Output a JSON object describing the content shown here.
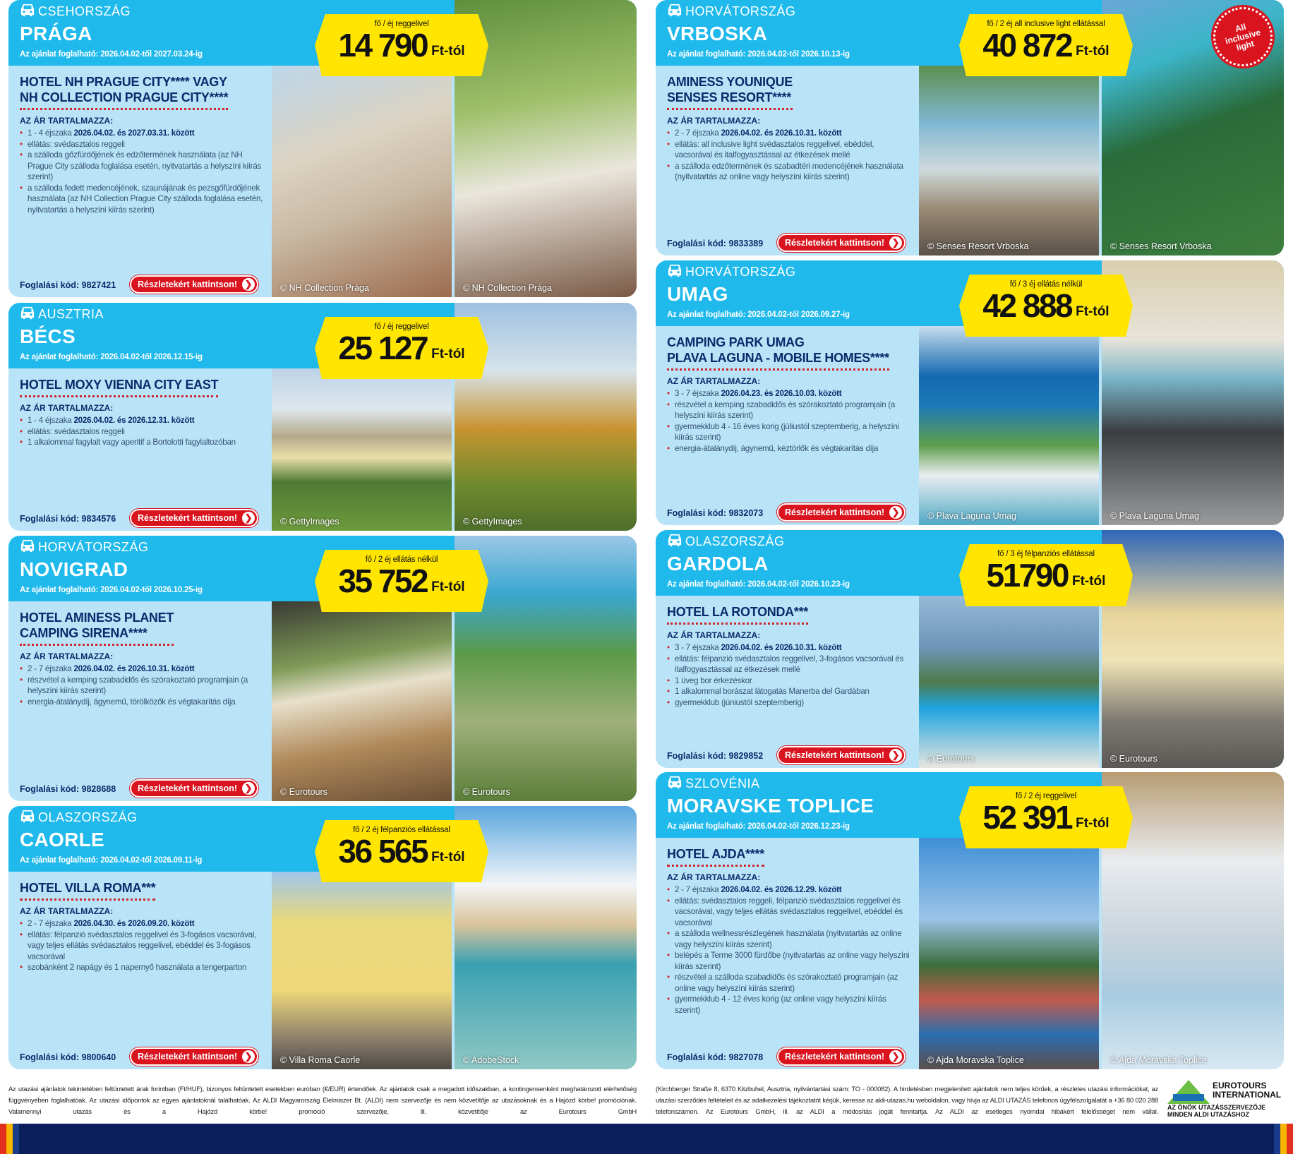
{
  "common": {
    "includes_label": "AZ ÁR TARTALMAZZA:",
    "code_label": "Foglalási kód:",
    "button_label": "Részletekért kattintson!",
    "price_suffix": "Ft-tól",
    "car_icon": "car-icon",
    "arrow_icon": "chevron-right-circle-icon"
  },
  "colors": {
    "header": "#1fb9ec",
    "panel": "#b9e4f7",
    "title": "#0b2a6b",
    "accent_red": "#d9141e",
    "price_yellow": "#ffe500",
    "bottom_bar": "#0b1f5c"
  },
  "cards": [
    {
      "country": "CSEHORSZÁG",
      "city": "PRÁGA",
      "dates": "Az ajánlat foglalható: 2026.04.02-től 2027.03.24-ig",
      "per": "fő / éj reggelivel",
      "price": "14 790",
      "hotel": [
        "HOTEL NH PRAGUE CITY**** VAGY",
        "NH COLLECTION PRAGUE CITY****"
      ],
      "bullets": [
        {
          "text": "1 - 4 éjszaka ",
          "bold": "2026.04.02. és 2027.03.31. között"
        },
        {
          "text": "ellátás: svédasztalos reggeli"
        },
        {
          "text": "a szálloda gőzfürdőjének és edzőtermének használata (az NH Prague City szálloda foglalása esetén, nyitvatartás a helyszíni kiírás szerint)"
        },
        {
          "text": "a szálloda fedett medencéjének, szaunájának és pezsgőfürdőjének használata (az NH Collection Prague City szálloda foglalása esetén, nyitvatartás a helyszíni kiírás szerint)"
        }
      ],
      "code": "9827421",
      "captions": [
        "© NH Collection Prága",
        "© NH Collection Prága"
      ]
    },
    {
      "country": "AUSZTRIA",
      "city": "BÉCS",
      "dates": "Az ajánlat foglalható: 2026.04.02-től 2026.12.15-ig",
      "per": "fő / éj reggelivel",
      "price": "25 127",
      "hotel": [
        "HOTEL MOXY VIENNA CITY EAST"
      ],
      "bullets": [
        {
          "text": "1 - 4 éjszaka ",
          "bold": "2026.04.02. és 2026.12.31. között"
        },
        {
          "text": "ellátás: svédasztalos reggeli"
        },
        {
          "text": "1 alkalommal fagylalt vagy aperitif a Bortolotti fagylaltozóban"
        }
      ],
      "code": "9834576",
      "captions": [
        "© GettyImages",
        "© GettyImages"
      ]
    },
    {
      "country": "HORVÁTORSZÁG",
      "city": "NOVIGRAD",
      "dates": "Az ajánlat foglalható: 2026.04.02-től 2026.10.25-ig",
      "per": "fő / 2 éj ellátás nélkül",
      "price": "35 752",
      "hotel": [
        "HOTEL AMINESS PLANET",
        "CAMPING SIRENA****"
      ],
      "bullets": [
        {
          "text": "2 - 7 éjszaka ",
          "bold": "2026.04.02. és 2026.10.31. között"
        },
        {
          "text": "részvétel a kemping szabadidős és szórakoztató programjain (a helyszíni kiírás szerint)"
        },
        {
          "text": "energia-átalánydíj, ágynemű, törölközők és végtakarítás díja"
        }
      ],
      "code": "9828688",
      "captions": [
        "© Eurotours",
        "© Eurotours"
      ]
    },
    {
      "country": "OLASZORSZÁG",
      "city": "CAORLE",
      "dates": "Az ajánlat foglalható: 2026.04.02-től 2026.09.11-ig",
      "per": "fő / 2 éj félpanziós ellátással",
      "price": "36 565",
      "hotel": [
        "HOTEL VILLA ROMA***"
      ],
      "bullets": [
        {
          "text": "2 - 7 éjszaka ",
          "bold": "2026.04.30. és 2026.09.20. között"
        },
        {
          "text": "ellátás: félpanzió svédasztalos reggelivel és 3-fogásos vacsorával, vagy teljes ellátás svédasztalos reggelivel, ebéddel és 3-fogásos vacsorával"
        },
        {
          "text": "szobánként 2 napágy és 1 napernyő használata a tengerparton"
        }
      ],
      "code": "9800640",
      "captions": [
        "© Villa Roma Caorle",
        "© AdobeStock"
      ]
    },
    {
      "country": "HORVÁTORSZÁG",
      "city": "VRBOSKA",
      "dates": "Az ajánlat foglalható: 2026.04.02-től 2026.10.13-ig",
      "per": "fő / 2 éj all inclusive light ellátással",
      "price": "40 872",
      "hotel": [
        "AMINESS YOUNIQUE",
        "SENSES RESORT****"
      ],
      "bullets": [
        {
          "text": "2 - 7 éjszaka ",
          "bold": "2026.04.02. és 2026.10.31. között"
        },
        {
          "text": "ellátás: all inclusive light svédasztalos reggelivel, ebéddel, vacsorával és italfogyasztással az étkezések mellé"
        },
        {
          "text": "a szálloda edzőtermének és szabadtéri medencéjének használata (nyitvatartás az online vagy helyszíni kiírás szerint)"
        }
      ],
      "code": "9833389",
      "captions": [
        "© Senses Resort Vrboska",
        "© Senses Resort Vrboska"
      ],
      "stamp": "All inclusive light"
    },
    {
      "country": "HORVÁTORSZÁG",
      "city": "UMAG",
      "dates": "Az ajánlat foglalható: 2026.04.02-től 2026.09.27-ig",
      "per": "fő / 3 éj ellátás nélkül",
      "price": "42 888",
      "hotel": [
        "CAMPING PARK UMAG",
        "PLAVA LAGUNA - MOBILE HOMES****"
      ],
      "bullets": [
        {
          "text": "3 - 7 éjszaka ",
          "bold": "2026.04.23. és 2026.10.03. között"
        },
        {
          "text": "részvétel a kemping szabadidős és szórakoztató programjain (a helyszíni kiírás szerint)"
        },
        {
          "text": "gyermekklub 4 - 16 éves korig (júliustól szeptemberig, a helyszíni kiírás szerint)"
        },
        {
          "text": "energia-átalánydíj, ágynemű, kéztörlők és végtakarítás díja"
        }
      ],
      "code": "9832073",
      "captions": [
        "© Plava Laguna Umag",
        "© Plava Laguna Umag"
      ]
    },
    {
      "country": "OLASZORSZÁG",
      "city": "GARDOLA",
      "dates": "Az ajánlat foglalható: 2026.04.02-től 2026.10.23-ig",
      "per": "fő / 3 éj félpanziós ellátással",
      "price": "51790",
      "hotel": [
        "HOTEL LA ROTONDA***"
      ],
      "bullets": [
        {
          "text": "3 - 7 éjszaka ",
          "bold": "2026.04.02. és 2026.10.31. között"
        },
        {
          "text": "ellátás: félpanzió svédasztalos reggelivel, 3-fogásos vacsorával és italfogyasztással az étkezések mellé"
        },
        {
          "text": "1 üveg bor érkezéskor"
        },
        {
          "text": "1 alkalommal borászat látogatás Manerba del Gardában"
        },
        {
          "text": "gyermekklub (júniustól szeptemberig)"
        }
      ],
      "code": "9829852",
      "captions": [
        "© Eurotours",
        "© Eurotours"
      ]
    },
    {
      "country": "SZLOVÉNIA",
      "city": "MORAVSKE TOPLICE",
      "dates": "Az ajánlat foglalható: 2026.04.02-től 2026.12.23-ig",
      "per": "fő / 2 éj reggelivel",
      "price": "52 391",
      "hotel": [
        "HOTEL AJDA****"
      ],
      "bullets": [
        {
          "text": "2 - 7 éjszaka ",
          "bold": "2026.04.02. és 2026.12.29. között"
        },
        {
          "text": "ellátás: svédasztalos reggeli, félpanzió svédasztalos reggelivel és vacsorával, vagy teljes ellátás svédasztalos reggelivel, ebéddel és vacsorával"
        },
        {
          "text": "a szálloda wellnessrészlegének használata (nyitvatartás az online vagy helyszíni kiírás szerint)"
        },
        {
          "text": "belépés a Terme 3000 fürdőbe (nyitvatartás az online vagy helyszíni kiírás szerint)"
        },
        {
          "text": "részvétel a szálloda szabadidős és szórakoztató programjain (az online vagy helyszíni kiírás szerint)"
        },
        {
          "text": "gyermekklub 4 - 12 éves korig (az online vagy helyszíni kiírás szerint)"
        }
      ],
      "code": "9827078",
      "captions": [
        "© Ajda Moravska Toplice",
        "© Ajda Moravska Toplice"
      ]
    }
  ],
  "footer": {
    "left": "Az utazási ajánlatok tekintetében feltüntetett árak forintban (Ft/HUF), bizonyos feltüntetett esetekben euróban (€/EUR) értendőek. Az ajánlatok csak a megadott időszakban, a kontingensenként meghatározott elérhetőség függvényében foglalhatóak. Az utazási időpontok az egyes ajánlatoknál találhatóak. Az ALDI Magyarország Élelmiszer Bt. (ALDI) nem szervezője és nem közvetítője az utazásoknak és a Hajózd körbe! promóciónak. Valamennyi utazás és a Hajózd körbe! promóció szervezője, ill. közvetítője az Eurotours GmbH",
    "right": "(Kirchberger Straße 8, 6370 Kitzbuhel, Ausztria, nyilvántartási szám: TO - 000082). A hirdetésben megjelenített ajánlatok nem teljes körűek, a részletes utazási információkat, az utazási szerződés feltételeit és az adatkezelési tájékoztatót kérjük, keresse az aldi-utazas.hu weboldalon, vagy hívja az ALDI UTAZÁS telefonos ügyfélszolgálatát a +36 80 020 288 telefonszámon. Az Eurotours GmbH, ill. az ALDI a módosítás jogát fenntartja. Az ALDI az esetleges nyomdai hibákért felelősséget nem vállal.",
    "logo_text": [
      "EUROTOURS",
      "INTERNATIONAL"
    ],
    "logo_tagline": [
      "AZ ÖNÖK UTAZÁSSZERVEZŐJE",
      "MINDEN ALDI UTAZÁSHOZ"
    ]
  }
}
